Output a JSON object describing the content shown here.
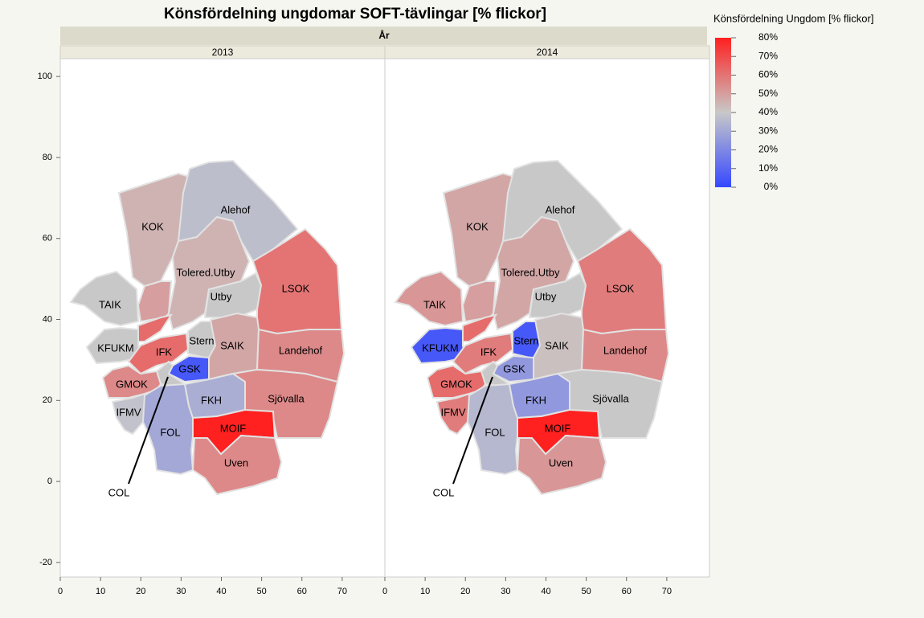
{
  "chart_data": {
    "type": "map",
    "title": "Könsfördelning ungdomar SOFT-tävlingar [% flickor]",
    "facet_label": "År",
    "regions": [
      "KOK",
      "Alehof",
      "Tolered.Utby",
      "Utby",
      "LSOK",
      null,
      "TAIK",
      null,
      "KFUKM",
      "IFK",
      "Stern",
      "GSK",
      "SAIK",
      "Landehof",
      "COL",
      "GMOK",
      "IFMV",
      "FOL",
      "FKH",
      "Sjövalla",
      "MOIF",
      "Uven"
    ],
    "panels": [
      {
        "label": "2013",
        "values": [
          45,
          37,
          45,
          40,
          60,
          50,
          40,
          62,
          40,
          62,
          40,
          5,
          48,
          55,
          40,
          55,
          38,
          30,
          32,
          55,
          80,
          55
        ]
      },
      {
        "label": "2014",
        "values": [
          48,
          40,
          48,
          40,
          58,
          50,
          52,
          62,
          5,
          58,
          5,
          25,
          42,
          55,
          40,
          62,
          58,
          35,
          25,
          40,
          80,
          52
        ]
      }
    ],
    "legend": {
      "title": "Könsfördelning Ungdom [% flickor]",
      "ticks": [
        {
          "value": 80,
          "label": "80%"
        },
        {
          "value": 70,
          "label": "70%"
        },
        {
          "value": 60,
          "label": "60%"
        },
        {
          "value": 50,
          "label": "50%"
        },
        {
          "value": 40,
          "label": "40%"
        },
        {
          "value": 30,
          "label": "30%"
        },
        {
          "value": 20,
          "label": "20%"
        },
        {
          "value": 10,
          "label": "10%"
        },
        {
          "value": 0,
          "label": "0%"
        }
      ],
      "colors": [
        "#3548ff",
        "#c8c8c8",
        "#ff2020"
      ]
    },
    "xlim": [
      0,
      80.6
    ],
    "xticks": [
      0,
      10,
      20,
      30,
      40,
      50,
      60,
      70
    ],
    "ylim": [
      -23.6,
      104.4
    ],
    "yticks": [
      -20,
      0,
      20,
      40,
      60,
      80,
      100
    ]
  }
}
